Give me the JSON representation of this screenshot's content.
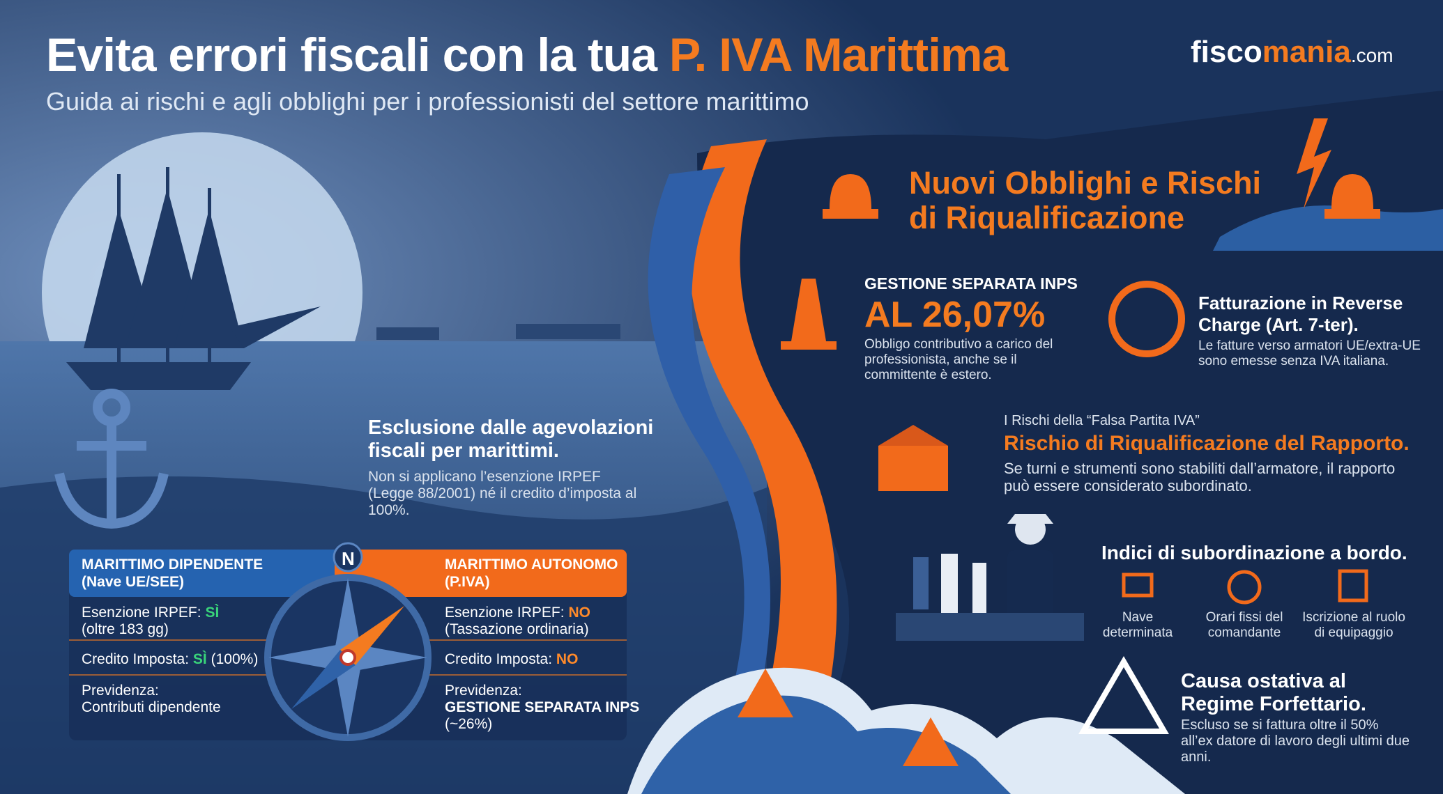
{
  "header": {
    "title": "Evita errori fiscali con la tua",
    "title_highlight": "P. IVA Marittima",
    "subtitle": "Guida ai rischi e agli obblighi per i professionisti del settore marittimo",
    "brand": {
      "part1": "fisco",
      "part2": "mania",
      "part3": ".com"
    }
  },
  "exclusion": {
    "title_lines": [
      "Esclusione dalle agevolazioni",
      "fiscali per marittimi."
    ],
    "text": "Non si applicano l’esenzione IRPEF (Legge 88/2001) né il credito d’imposta al 100%."
  },
  "comparison": {
    "compass_label": "N",
    "dipendente": {
      "title_lines": [
        "MARITTIMO DIPENDENTE",
        "(Nave UE/SEE)"
      ],
      "rows": [
        {
          "label": "Esenzione IRPEF:",
          "value": "SÌ",
          "note": "(oltre 183 gg)"
        },
        {
          "label": "Credito Imposta:",
          "value": "SÌ",
          "note": "(100%)"
        },
        {
          "label": "Previdenza:",
          "value": "Contributi dipendente"
        }
      ]
    },
    "autonomo": {
      "title_lines": [
        "MARITTIMO AUTONOMO",
        "(P.IVA)"
      ],
      "rows": [
        {
          "label": "Esenzione IRPEF:",
          "value": "NO",
          "note": "(Tassazione ordinaria)"
        },
        {
          "label": "Credito Imposta:",
          "value": "NO"
        },
        {
          "label": "Previdenza:",
          "value": "GESTIONE SEPARATA INPS",
          "note": "(~26%)"
        }
      ]
    }
  },
  "risks": {
    "title_lines": [
      "Nuovi Obblighi e Rischi",
      "di Riqualificazione"
    ],
    "inps": {
      "label": "GESTIONE SEPARATA INPS",
      "value": "AL 26,07%",
      "text": "Obbligo contributivo a carico del professionista, anche se il committente è estero."
    },
    "reverse": {
      "title_lines": [
        "Fatturazione in Reverse",
        "Charge (Art. 7-ter)."
      ],
      "text": "Le fatture verso armatori UE/extra-UE sono emesse senza IVA italiana."
    },
    "falsa": {
      "kicker": "I Rischi della “Falsa Partita IVA”",
      "title": "Rischio di Riqualificazione del Rapporto.",
      "text": "Se turni e strumenti sono stabiliti dall’armatore, il rapporto può essere considerato subordinato."
    },
    "indici": {
      "title": "Indici di subordinazione a bordo.",
      "items": [
        "Nave determinata",
        "Orari fissi del comandante",
        "Iscrizione al ruolo di equipaggio"
      ]
    },
    "ostativa": {
      "title_lines": [
        "Causa ostativa al",
        "Regime Forfettario."
      ],
      "text": "Escluso se si fattura oltre il 50% all’ex datore di lavoro degli ultimi due anni."
    }
  }
}
